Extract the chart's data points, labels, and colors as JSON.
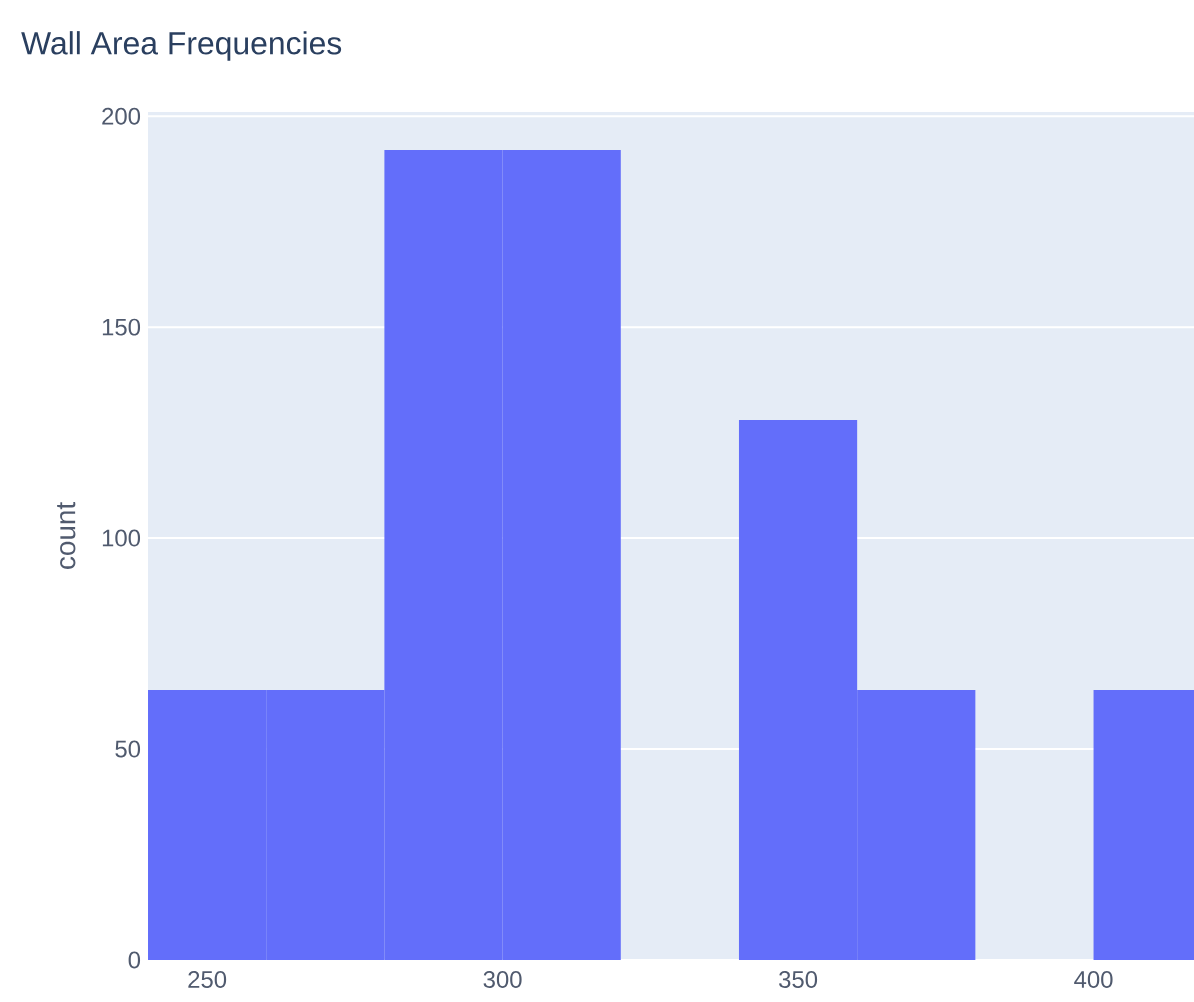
{
  "chart_data": {
    "type": "histogram",
    "title": "Wall Area Frequencies",
    "ylabel": "count",
    "bins": [
      240,
      260,
      280,
      300,
      320,
      340,
      360,
      380,
      400,
      420
    ],
    "values": [
      64,
      64,
      192,
      192,
      0,
      128,
      64,
      0,
      64
    ],
    "color": "#636efa",
    "xlim": [
      240,
      417
    ],
    "xticks": [
      250,
      300,
      350,
      400
    ],
    "ylim": [
      0,
      201
    ],
    "yticks": [
      0,
      50,
      100,
      150,
      200
    ],
    "grid": "y"
  }
}
